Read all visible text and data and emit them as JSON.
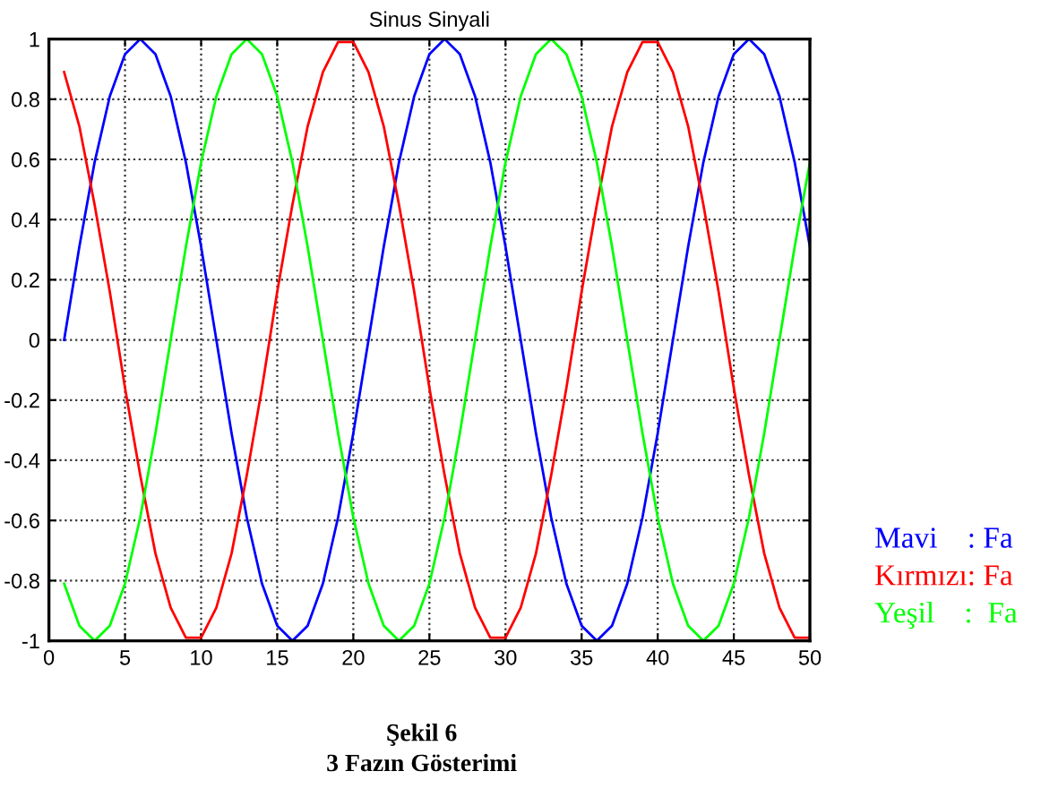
{
  "chart_data": {
    "type": "line",
    "title": "Sinus Sinyali",
    "x": [
      1,
      2,
      3,
      4,
      5,
      6,
      7,
      8,
      9,
      10,
      11,
      12,
      13,
      14,
      15,
      16,
      17,
      18,
      19,
      20,
      21,
      22,
      23,
      24,
      25,
      26,
      27,
      28,
      29,
      30,
      31,
      32,
      33,
      34,
      35,
      36,
      37,
      38,
      39,
      40,
      41,
      42,
      43,
      44,
      45,
      46,
      47,
      48,
      49,
      50
    ],
    "series": [
      {
        "color": "#0000ff",
        "values": [
          0,
          0.31,
          0.59,
          0.81,
          0.95,
          1,
          0.95,
          0.81,
          0.59,
          0.31,
          0,
          -0.31,
          -0.59,
          -0.81,
          -0.95,
          -1,
          -0.95,
          -0.81,
          -0.59,
          -0.31,
          0,
          0.31,
          0.59,
          0.81,
          0.95,
          1,
          0.95,
          0.81,
          0.59,
          0.31,
          0,
          -0.31,
          -0.59,
          -0.81,
          -0.95,
          -1,
          -0.95,
          -0.81,
          -0.59,
          -0.31,
          0,
          0.31,
          0.59,
          0.81,
          0.95,
          1,
          0.95,
          0.81,
          0.59,
          0.31
        ]
      },
      {
        "color": "#ff0000",
        "values": [
          0.89,
          0.71,
          0.45,
          0.16,
          -0.16,
          -0.45,
          -0.71,
          -0.89,
          -0.99,
          -0.99,
          -0.89,
          -0.71,
          -0.45,
          -0.16,
          0.16,
          0.45,
          0.71,
          0.89,
          0.99,
          0.99,
          0.89,
          0.71,
          0.45,
          0.16,
          -0.16,
          -0.45,
          -0.71,
          -0.89,
          -0.99,
          -0.99,
          -0.89,
          -0.71,
          -0.45,
          -0.16,
          0.16,
          0.45,
          0.71,
          0.89,
          0.99,
          0.99,
          0.89,
          0.71,
          0.45,
          0.16,
          -0.16,
          -0.45,
          -0.71,
          -0.89,
          -0.99,
          -0.99
        ]
      },
      {
        "color": "#00ff00",
        "values": [
          -0.81,
          -0.95,
          -1,
          -0.95,
          -0.81,
          -0.59,
          -0.31,
          0,
          0.31,
          0.59,
          0.81,
          0.95,
          1,
          0.95,
          0.81,
          0.59,
          0.31,
          0,
          -0.31,
          -0.59,
          -0.81,
          -0.95,
          -1,
          -0.95,
          -0.81,
          -0.59,
          -0.31,
          0,
          0.31,
          0.59,
          0.81,
          0.95,
          1,
          0.95,
          0.81,
          0.59,
          0.31,
          0,
          -0.31,
          -0.59,
          -0.81,
          -0.95,
          -1,
          -0.95,
          -0.81,
          -0.59,
          -0.31,
          0,
          0.31,
          0.59
        ]
      }
    ],
    "xlim": [
      0,
      50
    ],
    "xticks": [
      0,
      5,
      10,
      15,
      20,
      25,
      30,
      35,
      40,
      45,
      50
    ],
    "ylim": [
      -1,
      1
    ],
    "yticks": [
      -1,
      -0.8,
      -0.6,
      -0.4,
      -0.2,
      0,
      0.2,
      0.4,
      0.6,
      0.8,
      1
    ],
    "grid": true,
    "legend": false,
    "marker": "none",
    "line_style": "solid",
    "annotations": [
      "Mavi    : Fa",
      "Kırmızı: Fa",
      "Yeşil    :  Fa",
      "Şekil 6",
      "3 Fazın Gösterimi"
    ]
  }
}
